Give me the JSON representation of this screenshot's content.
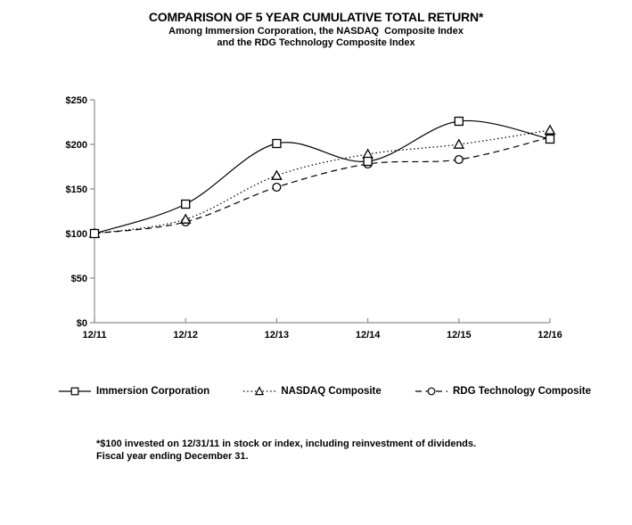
{
  "title": "COMPARISON OF 5 YEAR CUMULATIVE TOTAL RETURN*",
  "subtitle_line1": "Among Immersion Corporation, the NASDAQ  Composite Index",
  "subtitle_line2": "and the RDG Technology Composite Index",
  "footnote": {
    "line1": "*$100 invested on 12/31/11 in stock or index, including reinvestment of dividends.",
    "line2": "Fiscal year ending December 31."
  },
  "colors": {
    "background": "#ffffff",
    "axis": "#8c8c8c",
    "series_line": "#000000",
    "text": "#000000",
    "marker_fill": "#ffffff"
  },
  "chart_data": {
    "type": "line",
    "title": "COMPARISON OF 5 YEAR CUMULATIVE TOTAL RETURN*",
    "xlabel": "",
    "ylabel": "",
    "categories": [
      "12/11",
      "12/12",
      "12/13",
      "12/14",
      "12/15",
      "12/16"
    ],
    "series": [
      {
        "name": "Immersion Corporation",
        "line": "solid",
        "marker": "square",
        "values": [
          100,
          133,
          201,
          181,
          226,
          206
        ]
      },
      {
        "name": "NASDAQ Composite",
        "line": "dotted",
        "marker": "triangle",
        "values": [
          100,
          116,
          165,
          189,
          200,
          216
        ]
      },
      {
        "name": "RDG Technology Composite",
        "line": "dashed",
        "marker": "circle",
        "values": [
          100,
          113,
          152,
          178,
          183,
          208
        ]
      }
    ],
    "y_ticks": [
      {
        "value": 0,
        "label": "$0"
      },
      {
        "value": 50,
        "label": "$50"
      },
      {
        "value": 100,
        "label": "$100"
      },
      {
        "value": 150,
        "label": "$150"
      },
      {
        "value": 200,
        "label": "$200"
      },
      {
        "value": 250,
        "label": "$250"
      }
    ],
    "ylim": [
      0,
      250
    ],
    "grid": false,
    "legend_position": "bottom",
    "curve": "smooth"
  }
}
